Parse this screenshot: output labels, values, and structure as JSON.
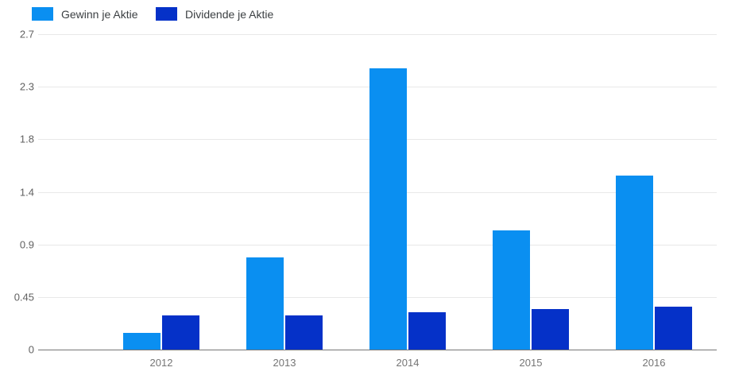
{
  "chart_data": {
    "type": "bar",
    "title": "",
    "xlabel": "",
    "ylabel": "",
    "categories": [
      "2012",
      "2013",
      "2014",
      "2015",
      "2016"
    ],
    "series": [
      {
        "name": "Gewinn je Aktie",
        "color": "#0a8ff1",
        "values": [
          0.14,
          0.79,
          2.41,
          1.02,
          1.49
        ]
      },
      {
        "name": "Dividende je Aktie",
        "color": "#0531c8",
        "values": [
          0.29,
          0.29,
          0.32,
          0.35,
          0.37
        ]
      }
    ],
    "ylim": [
      0,
      2.7
    ],
    "yticks": [
      {
        "value": 0,
        "label": "0"
      },
      {
        "value": 0.45,
        "label": "0.45"
      },
      {
        "value": 0.9,
        "label": "0.9"
      },
      {
        "value": 1.35,
        "label": "1.4"
      },
      {
        "value": 1.8,
        "label": "1.8"
      },
      {
        "value": 2.25,
        "label": "2.3"
      },
      {
        "value": 2.7,
        "label": "2.7"
      }
    ],
    "grid": true,
    "legend_position": "top-left"
  },
  "colors": {
    "background": "#ffffff",
    "gridline": "#e8e8e8",
    "baseline": "#757575",
    "axis_text": "#757575",
    "legend_text": "#3c4043"
  }
}
